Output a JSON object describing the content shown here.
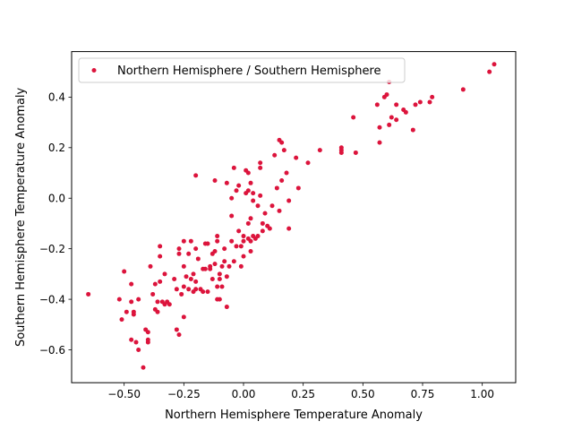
{
  "chart_data": {
    "type": "scatter",
    "xlabel": "Northern Hemisphere Temperature Anomaly",
    "ylabel": "Southern Hemisphere Temperature Anomaly",
    "xlim": [
      -0.72,
      1.14
    ],
    "ylim": [
      -0.73,
      0.58
    ],
    "x_ticks": [
      -0.5,
      -0.25,
      0.0,
      0.25,
      0.5,
      0.75,
      1.0
    ],
    "x_tick_labels": [
      "−0.50",
      "−0.25",
      "0.00",
      "0.25",
      "0.50",
      "0.75",
      "1.00"
    ],
    "y_ticks": [
      -0.6,
      -0.4,
      -0.2,
      0.0,
      0.2,
      0.4
    ],
    "y_tick_labels": [
      "−0.6",
      "−0.4",
      "−0.2",
      "0.0",
      "0.2",
      "0.4"
    ],
    "grid": false,
    "legend_position": "upper-left",
    "series": [
      {
        "name": "Northern Hemisphere / Southern Hemisphere",
        "color": "#dc143c",
        "marker": "circle",
        "points": [
          [
            -0.65,
            -0.38
          ],
          [
            -0.52,
            -0.4
          ],
          [
            -0.51,
            -0.48
          ],
          [
            -0.5,
            -0.29
          ],
          [
            -0.49,
            -0.45
          ],
          [
            -0.47,
            -0.56
          ],
          [
            -0.47,
            -0.34
          ],
          [
            -0.47,
            -0.41
          ],
          [
            -0.46,
            -0.45
          ],
          [
            -0.46,
            -0.46
          ],
          [
            -0.45,
            -0.57
          ],
          [
            -0.44,
            -0.6
          ],
          [
            -0.44,
            -0.4
          ],
          [
            -0.42,
            -0.67
          ],
          [
            -0.41,
            -0.52
          ],
          [
            -0.4,
            -0.57
          ],
          [
            -0.4,
            -0.53
          ],
          [
            -0.4,
            -0.56
          ],
          [
            -0.39,
            -0.27
          ],
          [
            -0.38,
            -0.38
          ],
          [
            -0.37,
            -0.34
          ],
          [
            -0.37,
            -0.44
          ],
          [
            -0.36,
            -0.41
          ],
          [
            -0.36,
            -0.45
          ],
          [
            -0.35,
            -0.19
          ],
          [
            -0.35,
            -0.23
          ],
          [
            -0.35,
            -0.33
          ],
          [
            -0.34,
            -0.41
          ],
          [
            -0.33,
            -0.3
          ],
          [
            -0.33,
            -0.42
          ],
          [
            -0.32,
            -0.41
          ],
          [
            -0.31,
            -0.42
          ],
          [
            -0.29,
            -0.32
          ],
          [
            -0.28,
            -0.36
          ],
          [
            -0.28,
            -0.52
          ],
          [
            -0.27,
            -0.2
          ],
          [
            -0.27,
            -0.22
          ],
          [
            -0.27,
            -0.54
          ],
          [
            -0.26,
            -0.38
          ],
          [
            -0.25,
            -0.17
          ],
          [
            -0.25,
            -0.27
          ],
          [
            -0.25,
            -0.35
          ],
          [
            -0.25,
            -0.47
          ],
          [
            -0.24,
            -0.31
          ],
          [
            -0.23,
            -0.22
          ],
          [
            -0.23,
            -0.36
          ],
          [
            -0.22,
            -0.17
          ],
          [
            -0.22,
            -0.32
          ],
          [
            -0.21,
            -0.3
          ],
          [
            -0.21,
            -0.37
          ],
          [
            -0.2,
            0.09
          ],
          [
            -0.2,
            -0.2
          ],
          [
            -0.2,
            -0.33
          ],
          [
            -0.2,
            -0.36
          ],
          [
            -0.19,
            -0.24
          ],
          [
            -0.18,
            -0.36
          ],
          [
            -0.17,
            -0.37
          ],
          [
            -0.17,
            -0.28
          ],
          [
            -0.16,
            -0.18
          ],
          [
            -0.16,
            -0.28
          ],
          [
            -0.15,
            -0.37
          ],
          [
            -0.15,
            -0.18
          ],
          [
            -0.14,
            -0.28
          ],
          [
            -0.14,
            -0.27
          ],
          [
            -0.13,
            -0.22
          ],
          [
            -0.13,
            -0.32
          ],
          [
            -0.12,
            -0.21
          ],
          [
            -0.12,
            -0.26
          ],
          [
            -0.12,
            0.07
          ],
          [
            -0.11,
            -0.15
          ],
          [
            -0.11,
            -0.17
          ],
          [
            -0.11,
            -0.35
          ],
          [
            -0.11,
            -0.4
          ],
          [
            -0.1,
            -0.4
          ],
          [
            -0.1,
            -0.3
          ],
          [
            -0.1,
            -0.32
          ],
          [
            -0.09,
            -0.27
          ],
          [
            -0.09,
            -0.35
          ],
          [
            -0.08,
            -0.2
          ],
          [
            -0.08,
            -0.25
          ],
          [
            -0.07,
            -0.31
          ],
          [
            -0.07,
            -0.43
          ],
          [
            -0.07,
            0.06
          ],
          [
            -0.06,
            -0.27
          ],
          [
            -0.05,
            -0.17
          ],
          [
            -0.05,
            0.0
          ],
          [
            -0.05,
            -0.07
          ],
          [
            -0.04,
            -0.25
          ],
          [
            -0.04,
            0.12
          ],
          [
            -0.03,
            -0.19
          ],
          [
            -0.03,
            0.03
          ],
          [
            -0.02,
            -0.13
          ],
          [
            -0.02,
            0.05
          ],
          [
            -0.01,
            -0.19
          ],
          [
            -0.01,
            -0.27
          ],
          [
            0.0,
            -0.23
          ],
          [
            0.0,
            -0.15
          ],
          [
            0.0,
            -0.17
          ],
          [
            0.01,
            0.02
          ],
          [
            0.01,
            0.11
          ],
          [
            0.02,
            -0.16
          ],
          [
            0.02,
            -0.1
          ],
          [
            0.02,
            0.1
          ],
          [
            0.02,
            0.03
          ],
          [
            0.03,
            -0.17
          ],
          [
            0.03,
            -0.21
          ],
          [
            0.03,
            -0.08
          ],
          [
            0.03,
            0.06
          ],
          [
            0.04,
            -0.01
          ],
          [
            0.04,
            0.02
          ],
          [
            0.04,
            -0.15
          ],
          [
            0.05,
            -0.16
          ],
          [
            0.06,
            -0.03
          ],
          [
            0.06,
            -0.15
          ],
          [
            0.07,
            0.12
          ],
          [
            0.07,
            0.14
          ],
          [
            0.07,
            0.01
          ],
          [
            0.08,
            -0.13
          ],
          [
            0.08,
            -0.1
          ],
          [
            0.09,
            -0.06
          ],
          [
            0.1,
            -0.11
          ],
          [
            0.11,
            -0.12
          ],
          [
            0.12,
            -0.03
          ],
          [
            0.13,
            0.17
          ],
          [
            0.14,
            0.04
          ],
          [
            0.15,
            0.23
          ],
          [
            0.15,
            -0.05
          ],
          [
            0.16,
            0.07
          ],
          [
            0.16,
            0.22
          ],
          [
            0.17,
            0.19
          ],
          [
            0.18,
            0.1
          ],
          [
            0.19,
            -0.12
          ],
          [
            0.19,
            -0.01
          ],
          [
            0.22,
            0.16
          ],
          [
            0.23,
            0.04
          ],
          [
            0.27,
            0.14
          ],
          [
            0.32,
            0.19
          ],
          [
            0.41,
            0.2
          ],
          [
            0.41,
            0.18
          ],
          [
            0.41,
            0.19
          ],
          [
            0.46,
            0.32
          ],
          [
            0.47,
            0.18
          ],
          [
            0.56,
            0.37
          ],
          [
            0.57,
            0.28
          ],
          [
            0.57,
            0.22
          ],
          [
            0.59,
            0.4
          ],
          [
            0.6,
            0.41
          ],
          [
            0.61,
            0.46
          ],
          [
            0.61,
            0.29
          ],
          [
            0.62,
            0.32
          ],
          [
            0.64,
            0.37
          ],
          [
            0.64,
            0.31
          ],
          [
            0.67,
            0.35
          ],
          [
            0.68,
            0.34
          ],
          [
            0.71,
            0.27
          ],
          [
            0.72,
            0.37
          ],
          [
            0.74,
            0.38
          ],
          [
            0.78,
            0.38
          ],
          [
            0.79,
            0.4
          ],
          [
            0.92,
            0.43
          ],
          [
            1.03,
            0.5
          ],
          [
            1.05,
            0.53
          ]
        ]
      }
    ]
  }
}
